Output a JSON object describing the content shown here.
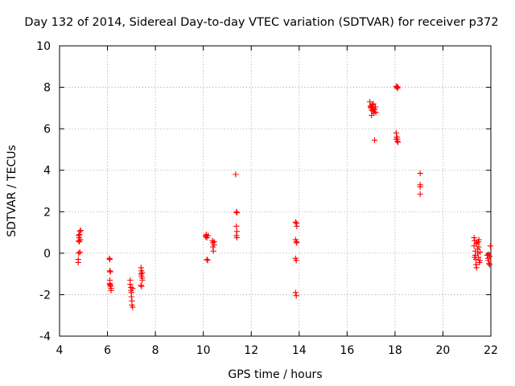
{
  "chart_data": {
    "type": "scatter",
    "title": "Day 132 of 2014, Sidereal Day-to-day VTEC variation (SDTVAR) for receiver p372",
    "xlabel": "GPS time / hours",
    "ylabel": "SDTVAR / TECUs",
    "xlim": [
      4,
      22
    ],
    "ylim": [
      -4,
      10
    ],
    "xticks": [
      "4",
      "6",
      "8",
      "10",
      "12",
      "14",
      "16",
      "18",
      "20",
      "22"
    ],
    "yticks": [
      "-4",
      "-2",
      "0",
      "2",
      "4",
      "6",
      "8",
      "10"
    ],
    "grid": true,
    "marker": "+",
    "color": "#ff0000",
    "series": [
      {
        "name": "SDTVAR",
        "points": [
          [
            4.78,
            -0.45
          ],
          [
            4.78,
            -0.3
          ],
          [
            4.8,
            0.0
          ],
          [
            4.8,
            0.6
          ],
          [
            4.82,
            0.75
          ],
          [
            4.83,
            0.9
          ],
          [
            4.85,
            1.05
          ],
          [
            4.85,
            0.05
          ],
          [
            4.87,
            0.65
          ],
          [
            4.88,
            1.1
          ],
          [
            4.82,
            0.55
          ],
          [
            4.8,
            0.85
          ],
          [
            6.08,
            -0.25
          ],
          [
            6.1,
            -0.3
          ],
          [
            6.1,
            -0.85
          ],
          [
            6.12,
            -0.9
          ],
          [
            6.1,
            -1.3
          ],
          [
            6.1,
            -1.5
          ],
          [
            6.12,
            -1.6
          ],
          [
            6.15,
            -1.7
          ],
          [
            6.15,
            -1.8
          ],
          [
            6.1,
            -1.45
          ],
          [
            6.12,
            -1.55
          ],
          [
            6.95,
            -1.3
          ],
          [
            6.95,
            -1.5
          ],
          [
            6.98,
            -1.65
          ],
          [
            6.98,
            -1.8
          ],
          [
            7.0,
            -1.9
          ],
          [
            7.0,
            -2.1
          ],
          [
            7.02,
            -2.3
          ],
          [
            7.02,
            -2.5
          ],
          [
            7.05,
            -2.6
          ],
          [
            7.05,
            -1.7
          ],
          [
            7.4,
            -0.7
          ],
          [
            7.42,
            -0.85
          ],
          [
            7.4,
            -1.0
          ],
          [
            7.42,
            -1.1
          ],
          [
            7.45,
            -1.2
          ],
          [
            7.45,
            -1.3
          ],
          [
            7.4,
            -1.55
          ],
          [
            7.42,
            -1.6
          ],
          [
            7.45,
            -0.95
          ],
          [
            10.1,
            0.8
          ],
          [
            10.12,
            0.85
          ],
          [
            10.12,
            0.9
          ],
          [
            10.15,
            0.75
          ],
          [
            10.15,
            -0.3
          ],
          [
            10.18,
            -0.35
          ],
          [
            10.2,
            0.85
          ],
          [
            10.38,
            0.6
          ],
          [
            10.4,
            0.5
          ],
          [
            10.4,
            0.3
          ],
          [
            10.42,
            0.1
          ],
          [
            10.45,
            0.55
          ],
          [
            10.45,
            0.4
          ],
          [
            11.35,
            3.8
          ],
          [
            11.38,
            2.0
          ],
          [
            11.4,
            1.95
          ],
          [
            11.38,
            1.3
          ],
          [
            11.4,
            1.05
          ],
          [
            11.38,
            0.85
          ],
          [
            11.4,
            0.75
          ],
          [
            13.85,
            1.5
          ],
          [
            13.88,
            1.45
          ],
          [
            13.9,
            1.3
          ],
          [
            13.85,
            0.65
          ],
          [
            13.88,
            0.55
          ],
          [
            13.9,
            0.5
          ],
          [
            13.85,
            -0.25
          ],
          [
            13.88,
            -0.35
          ],
          [
            13.85,
            -1.9
          ],
          [
            13.88,
            -2.05
          ],
          [
            16.95,
            7.3
          ],
          [
            16.98,
            7.1
          ],
          [
            17.0,
            7.0
          ],
          [
            17.02,
            6.9
          ],
          [
            17.05,
            7.15
          ],
          [
            17.08,
            6.85
          ],
          [
            17.1,
            7.2
          ],
          [
            17.12,
            6.75
          ],
          [
            17.15,
            6.95
          ],
          [
            17.18,
            7.05
          ],
          [
            17.2,
            6.8
          ],
          [
            17.02,
            6.65
          ],
          [
            17.15,
            5.45
          ],
          [
            17.0,
            7.05
          ],
          [
            17.1,
            6.95
          ],
          [
            18.05,
            8.05
          ],
          [
            18.08,
            8.0
          ],
          [
            18.1,
            7.95
          ],
          [
            18.12,
            8.02
          ],
          [
            18.05,
            5.8
          ],
          [
            18.08,
            5.6
          ],
          [
            18.1,
            5.5
          ],
          [
            18.1,
            5.4
          ],
          [
            18.12,
            5.35
          ],
          [
            18.05,
            5.5
          ],
          [
            19.05,
            3.85
          ],
          [
            19.05,
            3.3
          ],
          [
            19.05,
            3.2
          ],
          [
            19.05,
            2.85
          ],
          [
            21.3,
            0.75
          ],
          [
            21.32,
            0.6
          ],
          [
            21.3,
            0.35
          ],
          [
            21.35,
            0.1
          ],
          [
            21.35,
            -0.1
          ],
          [
            21.38,
            -0.3
          ],
          [
            21.38,
            -0.55
          ],
          [
            21.4,
            -0.7
          ],
          [
            21.42,
            0.5
          ],
          [
            21.45,
            0.2
          ],
          [
            21.45,
            0.0
          ],
          [
            21.48,
            -0.2
          ],
          [
            21.5,
            0.65
          ],
          [
            21.5,
            0.3
          ],
          [
            21.52,
            -0.45
          ],
          [
            21.55,
            0.05
          ],
          [
            21.55,
            -0.35
          ],
          [
            21.4,
            0.45
          ],
          [
            21.32,
            -0.2
          ],
          [
            21.48,
            0.55
          ],
          [
            21.85,
            -0.1
          ],
          [
            21.88,
            -0.25
          ],
          [
            21.9,
            -0.35
          ],
          [
            21.92,
            -0.5
          ],
          [
            21.95,
            -0.15
          ],
          [
            21.98,
            0.35
          ],
          [
            21.95,
            -0.55
          ],
          [
            21.9,
            -0.05
          ]
        ]
      }
    ]
  }
}
